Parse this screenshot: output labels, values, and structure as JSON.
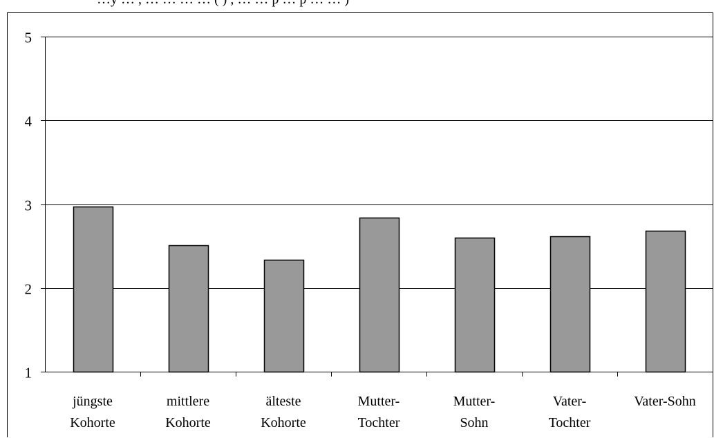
{
  "header": {
    "title_fragment": "…y … , … … … … ( ) , … … p … p … … )"
  },
  "chart_data": {
    "type": "bar",
    "categories": [
      [
        "jüngste",
        "Kohorte"
      ],
      [
        "mittlere",
        "Kohorte"
      ],
      [
        "älteste",
        "Kohorte"
      ],
      [
        "Mutter-",
        "Tochter"
      ],
      [
        "Mutter-",
        "Sohn"
      ],
      [
        "Vater-",
        "Tochter"
      ],
      [
        "Vater-Sohn"
      ]
    ],
    "values": [
      2.97,
      2.51,
      2.34,
      2.84,
      2.6,
      2.62,
      2.68
    ],
    "ylim": [
      1,
      5
    ],
    "yticks": [
      "1",
      "2",
      "3",
      "4",
      "5"
    ],
    "grid": true,
    "title": "",
    "xlabel": "",
    "ylabel": "",
    "bar_color": "#999999",
    "bar_stroke": "#000000"
  }
}
